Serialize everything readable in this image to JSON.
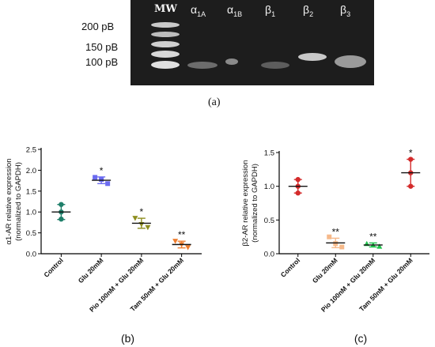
{
  "gel": {
    "mw_label": "MW",
    "markers": [
      "200 pB",
      "150 pB",
      "100 pB"
    ],
    "lanes": [
      {
        "base": "α",
        "sub": "1A"
      },
      {
        "base": "α",
        "sub": "1B"
      },
      {
        "base": "β",
        "sub": "1"
      },
      {
        "base": "β",
        "sub": "2"
      },
      {
        "base": "β",
        "sub": "3"
      }
    ],
    "panel": "(a)"
  },
  "chart_data": [
    {
      "type": "scatter",
      "panel": "(b)",
      "ylabel": "α1-AR relative expression (normalized to GAPDH)",
      "ylabel_lines": [
        "α1-AR relative expression",
        "(normalized to GAPDH)"
      ],
      "ylim": [
        0,
        2.5
      ],
      "yticks": [
        "0.0",
        "0.5",
        "1.0",
        "1.5",
        "2.0",
        "2.5"
      ],
      "categories": [
        "Control",
        "Glu 20mM",
        "Pio 100nM + Glu 20mM",
        "Tam 50nM + Glu 20mM"
      ],
      "colors": [
        "#1f7f6a",
        "#6b6bf0",
        "#8e8e1f",
        "#ee7d2e"
      ],
      "markers": [
        "circle",
        "square",
        "triangle-down",
        "triangle-down"
      ],
      "points": [
        [
          1.18,
          1.0,
          0.83
        ],
        [
          1.83,
          1.78,
          1.68
        ],
        [
          0.85,
          0.7,
          0.63
        ],
        [
          0.3,
          0.22,
          0.15
        ]
      ],
      "means": [
        1.0,
        1.76,
        0.73,
        0.22
      ],
      "sd": [
        0.18,
        0.08,
        0.12,
        0.08
      ],
      "significance": [
        "",
        "*",
        "*",
        "**"
      ]
    },
    {
      "type": "scatter",
      "panel": "(c)",
      "ylabel": "β2-AR relative expression (normalized to GAPDH)",
      "ylabel_lines": [
        "β2-AR relative expression",
        "(normalized to GAPDH)"
      ],
      "ylim": [
        0,
        1.5
      ],
      "yticks": [
        "0.0",
        "0.5",
        "1.0",
        "1.5"
      ],
      "categories": [
        "Control",
        "Glu 20mM",
        "Pio 100nM + Glu 20mM",
        "Tam 50nM + Glu 20mM"
      ],
      "colors": [
        "#d42b2b",
        "#f6b98a",
        "#21c24d",
        "#d42b2b"
      ],
      "markers": [
        "circle",
        "square",
        "triangle-up",
        "circle"
      ],
      "points": [
        [
          1.1,
          1.0,
          0.9
        ],
        [
          0.25,
          0.15,
          0.1
        ],
        [
          0.15,
          0.13,
          0.11
        ],
        [
          1.4,
          1.2,
          1.0
        ]
      ],
      "means": [
        1.0,
        0.16,
        0.13,
        1.2
      ],
      "sd": [
        0.1,
        0.07,
        0.03,
        0.2
      ],
      "significance": [
        "",
        "**",
        "**",
        "*"
      ]
    }
  ]
}
